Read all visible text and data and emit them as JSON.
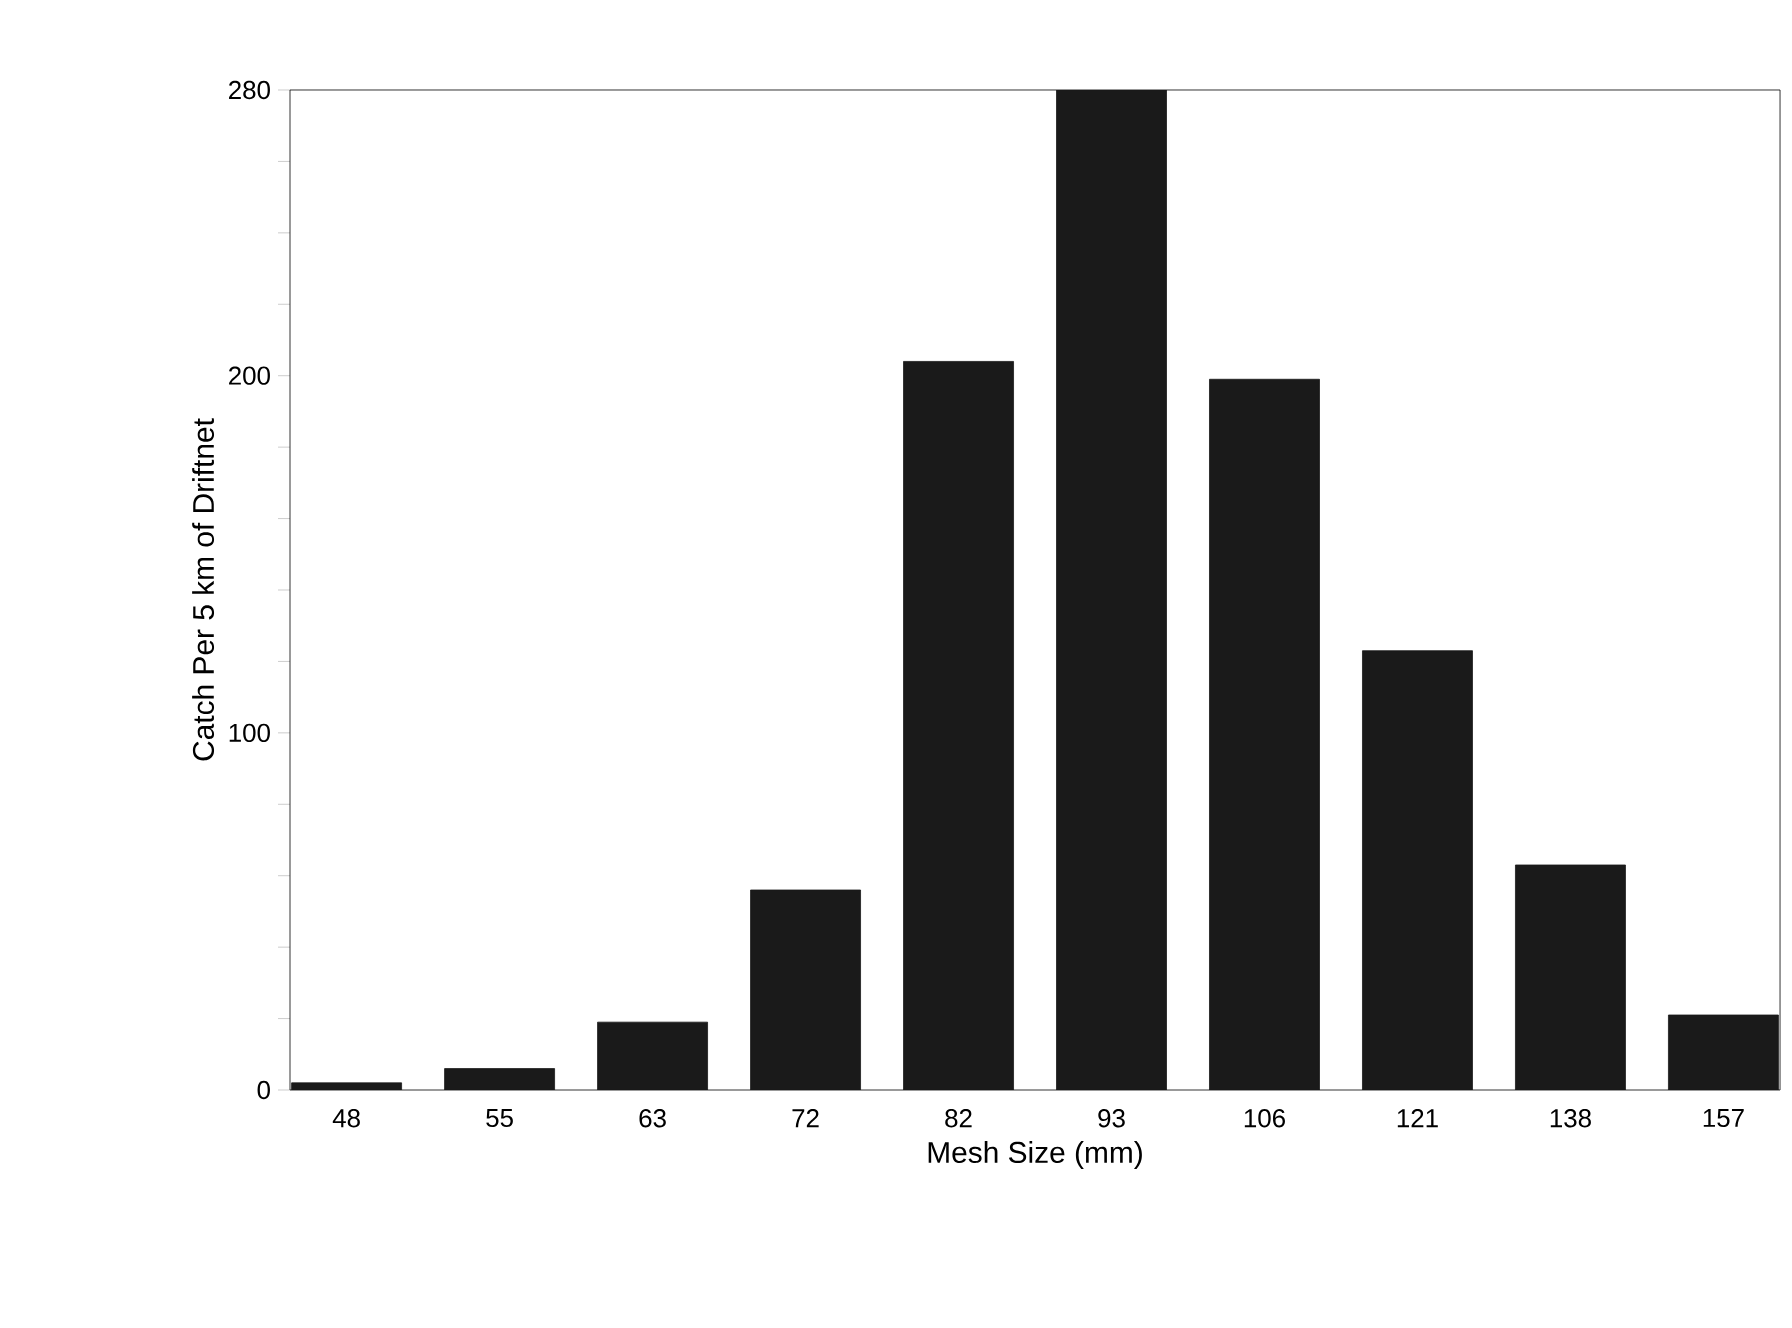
{
  "chart_data": {
    "type": "bar",
    "xlabel": "Mesh Size (mm)",
    "ylabel": "Catch Per 5 km of Driftnet",
    "categories": [
      "48",
      "55",
      "63",
      "72",
      "82",
      "93",
      "106",
      "121",
      "138",
      "157"
    ],
    "values": [
      2,
      6,
      19,
      56,
      204,
      280,
      199,
      123,
      63,
      21
    ],
    "color": "#1a1a1a",
    "ylim": [
      0,
      280
    ],
    "yticks": [
      0,
      {
        "value": 20,
        "label": null
      },
      {
        "value": 40,
        "label": null
      },
      {
        "value": 60,
        "label": null
      },
      {
        "value": 80,
        "label": null
      },
      100,
      {
        "value": 120,
        "label": null
      },
      {
        "value": 140,
        "label": null
      },
      {
        "value": 160,
        "label": null
      },
      {
        "value": 180,
        "label": null
      },
      200,
      {
        "value": 220,
        "label": null
      },
      {
        "value": 240,
        "label": null
      },
      {
        "value": 260,
        "label": null
      },
      280
    ],
    "grid": false
  }
}
